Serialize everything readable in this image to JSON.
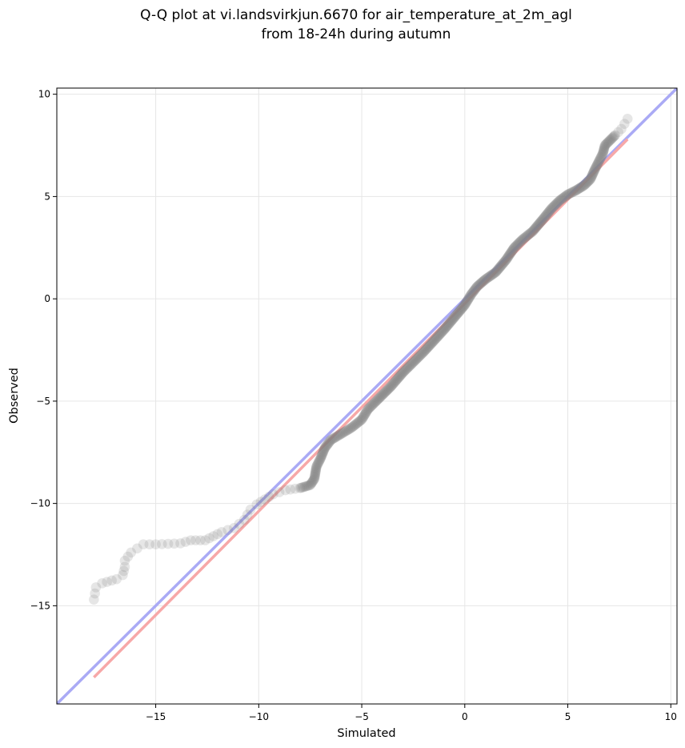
{
  "chart_data": {
    "type": "scatter",
    "title": [
      "Q-Q plot at vi.landsvirkjun.6670 for air_temperature_at_2m_agl",
      "from 18-24h during autumn"
    ],
    "xlabel": "Simulated",
    "ylabel": "Observed",
    "xlim": [
      -19.8,
      10.3
    ],
    "ylim": [
      -19.8,
      10.3
    ],
    "xticks": [
      -15,
      -10,
      -5,
      0,
      5,
      10
    ],
    "yticks": [
      -15,
      -10,
      -5,
      0,
      5,
      10
    ],
    "xtick_labels": [
      "−15",
      "−10",
      "−5",
      "0",
      "5",
      "10"
    ],
    "ytick_labels": [
      "−15",
      "−10",
      "−5",
      "0",
      "5",
      "10"
    ],
    "grid": true,
    "reference_line": {
      "slope": 1,
      "intercept": 0,
      "color": "#aaaaf5"
    },
    "fit_line": {
      "x": [
        -18.0,
        7.9
      ],
      "y": [
        -18.5,
        7.8
      ],
      "color": "#f7a8a8"
    },
    "point_color": "#808080",
    "quantile_curve": [
      [
        -18.0,
        -14.7
      ],
      [
        -17.9,
        -14.1
      ],
      [
        -17.6,
        -13.9
      ],
      [
        -16.9,
        -13.7
      ],
      [
        -16.6,
        -13.5
      ],
      [
        -16.5,
        -13.1
      ],
      [
        -16.5,
        -12.8
      ],
      [
        -16.2,
        -12.4
      ],
      [
        -15.9,
        -12.2
      ],
      [
        -15.6,
        -12.0
      ],
      [
        -15.0,
        -12.0
      ],
      [
        -13.8,
        -11.95
      ],
      [
        -13.3,
        -11.8
      ],
      [
        -12.6,
        -11.8
      ],
      [
        -12.2,
        -11.6
      ],
      [
        -11.8,
        -11.4
      ],
      [
        -11.2,
        -11.2
      ],
      [
        -10.7,
        -10.8
      ],
      [
        -10.4,
        -10.3
      ],
      [
        -10.1,
        -10.05
      ],
      [
        -9.7,
        -9.8
      ],
      [
        -9.3,
        -9.55
      ],
      [
        -8.7,
        -9.35
      ],
      [
        -8.0,
        -9.25
      ],
      [
        -7.5,
        -9.1
      ],
      [
        -7.3,
        -8.8
      ],
      [
        -7.2,
        -8.2
      ],
      [
        -7.0,
        -7.8
      ],
      [
        -6.8,
        -7.3
      ],
      [
        -6.5,
        -6.9
      ],
      [
        -6.0,
        -6.6
      ],
      [
        -5.5,
        -6.3
      ],
      [
        -5.0,
        -5.9
      ],
      [
        -4.7,
        -5.4
      ],
      [
        -4.2,
        -4.9
      ],
      [
        -3.6,
        -4.3
      ],
      [
        -3.0,
        -3.6
      ],
      [
        -2.5,
        -3.1
      ],
      [
        -2.0,
        -2.6
      ],
      [
        -1.5,
        -2.05
      ],
      [
        -1.0,
        -1.5
      ],
      [
        -0.5,
        -0.9
      ],
      [
        0.0,
        -0.3
      ],
      [
        0.3,
        0.2
      ],
      [
        0.6,
        0.6
      ],
      [
        1.0,
        0.95
      ],
      [
        1.5,
        1.3
      ],
      [
        2.0,
        1.9
      ],
      [
        2.4,
        2.5
      ],
      [
        2.8,
        2.9
      ],
      [
        3.3,
        3.3
      ],
      [
        3.8,
        3.9
      ],
      [
        4.2,
        4.4
      ],
      [
        4.6,
        4.8
      ],
      [
        5.0,
        5.1
      ],
      [
        5.4,
        5.3
      ],
      [
        5.8,
        5.55
      ],
      [
        6.1,
        5.85
      ],
      [
        6.3,
        6.3
      ],
      [
        6.5,
        6.7
      ],
      [
        6.7,
        7.1
      ],
      [
        6.8,
        7.5
      ],
      [
        7.0,
        7.7
      ],
      [
        7.3,
        8.0
      ],
      [
        7.6,
        8.3
      ],
      [
        7.9,
        8.8
      ]
    ]
  }
}
